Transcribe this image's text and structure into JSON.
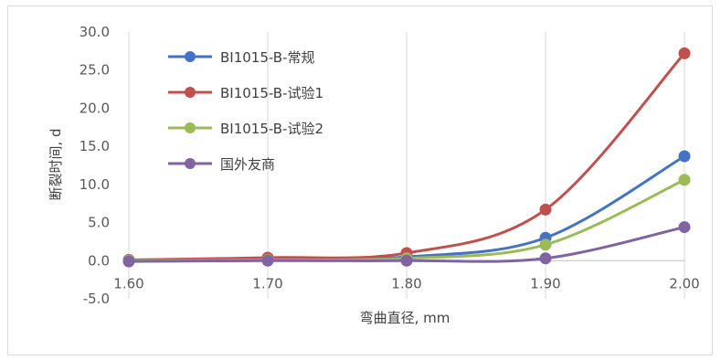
{
  "chart_data": {
    "type": "line",
    "xlabel": "弯曲直径, mm",
    "ylabel": "断裂时间, d",
    "x": [
      1.6,
      1.7,
      1.8,
      1.9,
      2.0
    ],
    "x_tick_labels": [
      "1.60",
      "1.70",
      "1.80",
      "1.90",
      "2.00"
    ],
    "y_tick_labels": [
      "-5.0",
      "0.0",
      "5.0",
      "10.0",
      "15.0",
      "20.0",
      "25.0",
      "30.0"
    ],
    "xlim": [
      1.6,
      2.0
    ],
    "ylim": [
      -5.0,
      30.0
    ],
    "grid": "vertical",
    "legend_position": "top-left",
    "series": [
      {
        "name": "BI1015-B-常规",
        "color": "#4472C4",
        "values": [
          0.1,
          0.2,
          0.5,
          3.0,
          13.7
        ]
      },
      {
        "name": "BI1015-B-试验1",
        "color": "#C0504D",
        "values": [
          0.1,
          0.4,
          1.0,
          6.7,
          27.2
        ]
      },
      {
        "name": "BI1015-B-试验2",
        "color": "#9BBB59",
        "values": [
          0.0,
          0.1,
          0.3,
          2.1,
          10.6
        ]
      },
      {
        "name": "国外友商",
        "color": "#8064A2",
        "values": [
          -0.1,
          0.0,
          0.0,
          0.3,
          4.4
        ]
      }
    ]
  }
}
